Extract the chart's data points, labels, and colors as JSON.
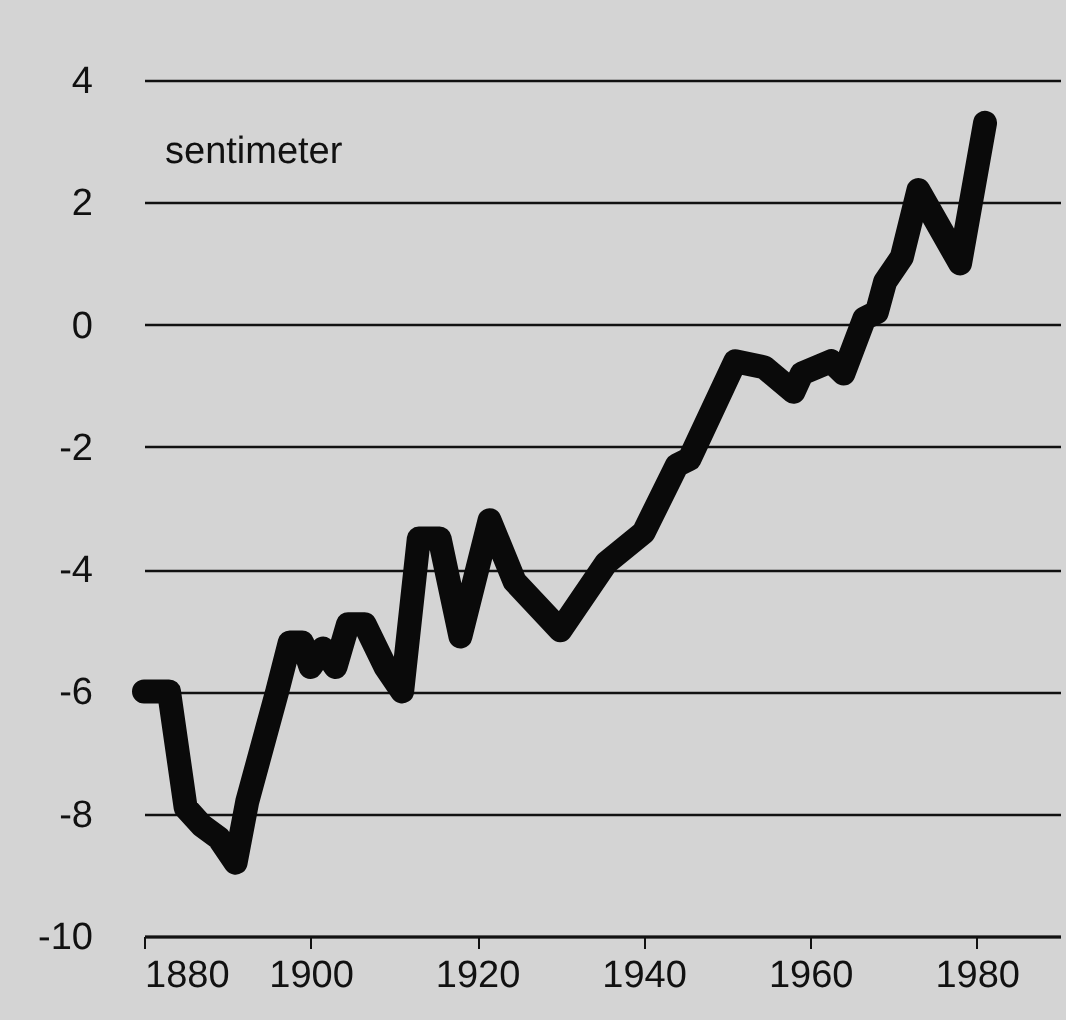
{
  "chart_data": {
    "type": "line",
    "ylabel": "sentimeter",
    "x": [
      1880,
      1883,
      1885,
      1887,
      1889,
      1891,
      1892.4,
      1896,
      1897.5,
      1899,
      1900,
      1901.5,
      1903,
      1904.5,
      1906.5,
      1909,
      1911,
      1913,
      1915.5,
      1918,
      1921.5,
      1924.5,
      1930,
      1935.5,
      1940,
      1944,
      1945.5,
      1951,
      1954.5,
      1958,
      1959,
      1962.5,
      1964,
      1966.5,
      1968,
      1969,
      1971,
      1973,
      1978,
      1981
    ],
    "series": [
      {
        "color": "#0a0a0a",
        "values": [
          -6,
          -6,
          -7.9,
          -8.2,
          -8.4,
          -8.8,
          -7.8,
          -6,
          -5.2,
          -5.2,
          -5.6,
          -5.3,
          -5.6,
          -4.9,
          -4.9,
          -5.6,
          -6,
          -3.5,
          -3.5,
          -5.1,
          -3.2,
          -4.2,
          -5,
          -3.9,
          -3.4,
          -2.3,
          -2.2,
          -0.6,
          -0.7,
          -1.1,
          -0.8,
          -0.6,
          -0.8,
          0.1,
          0.2,
          0.7,
          1.1,
          2.2,
          1.0,
          3.3
        ]
      }
    ],
    "xlim": [
      1880,
      1990
    ],
    "xticks": [
      1880,
      1900,
      1920,
      1940,
      1960,
      1980
    ],
    "ylim": [
      -10,
      4
    ],
    "yticks": [
      -10,
      -8,
      -6,
      -4,
      -2,
      0,
      2,
      4
    ],
    "grid": "y",
    "line_style": "solid"
  }
}
